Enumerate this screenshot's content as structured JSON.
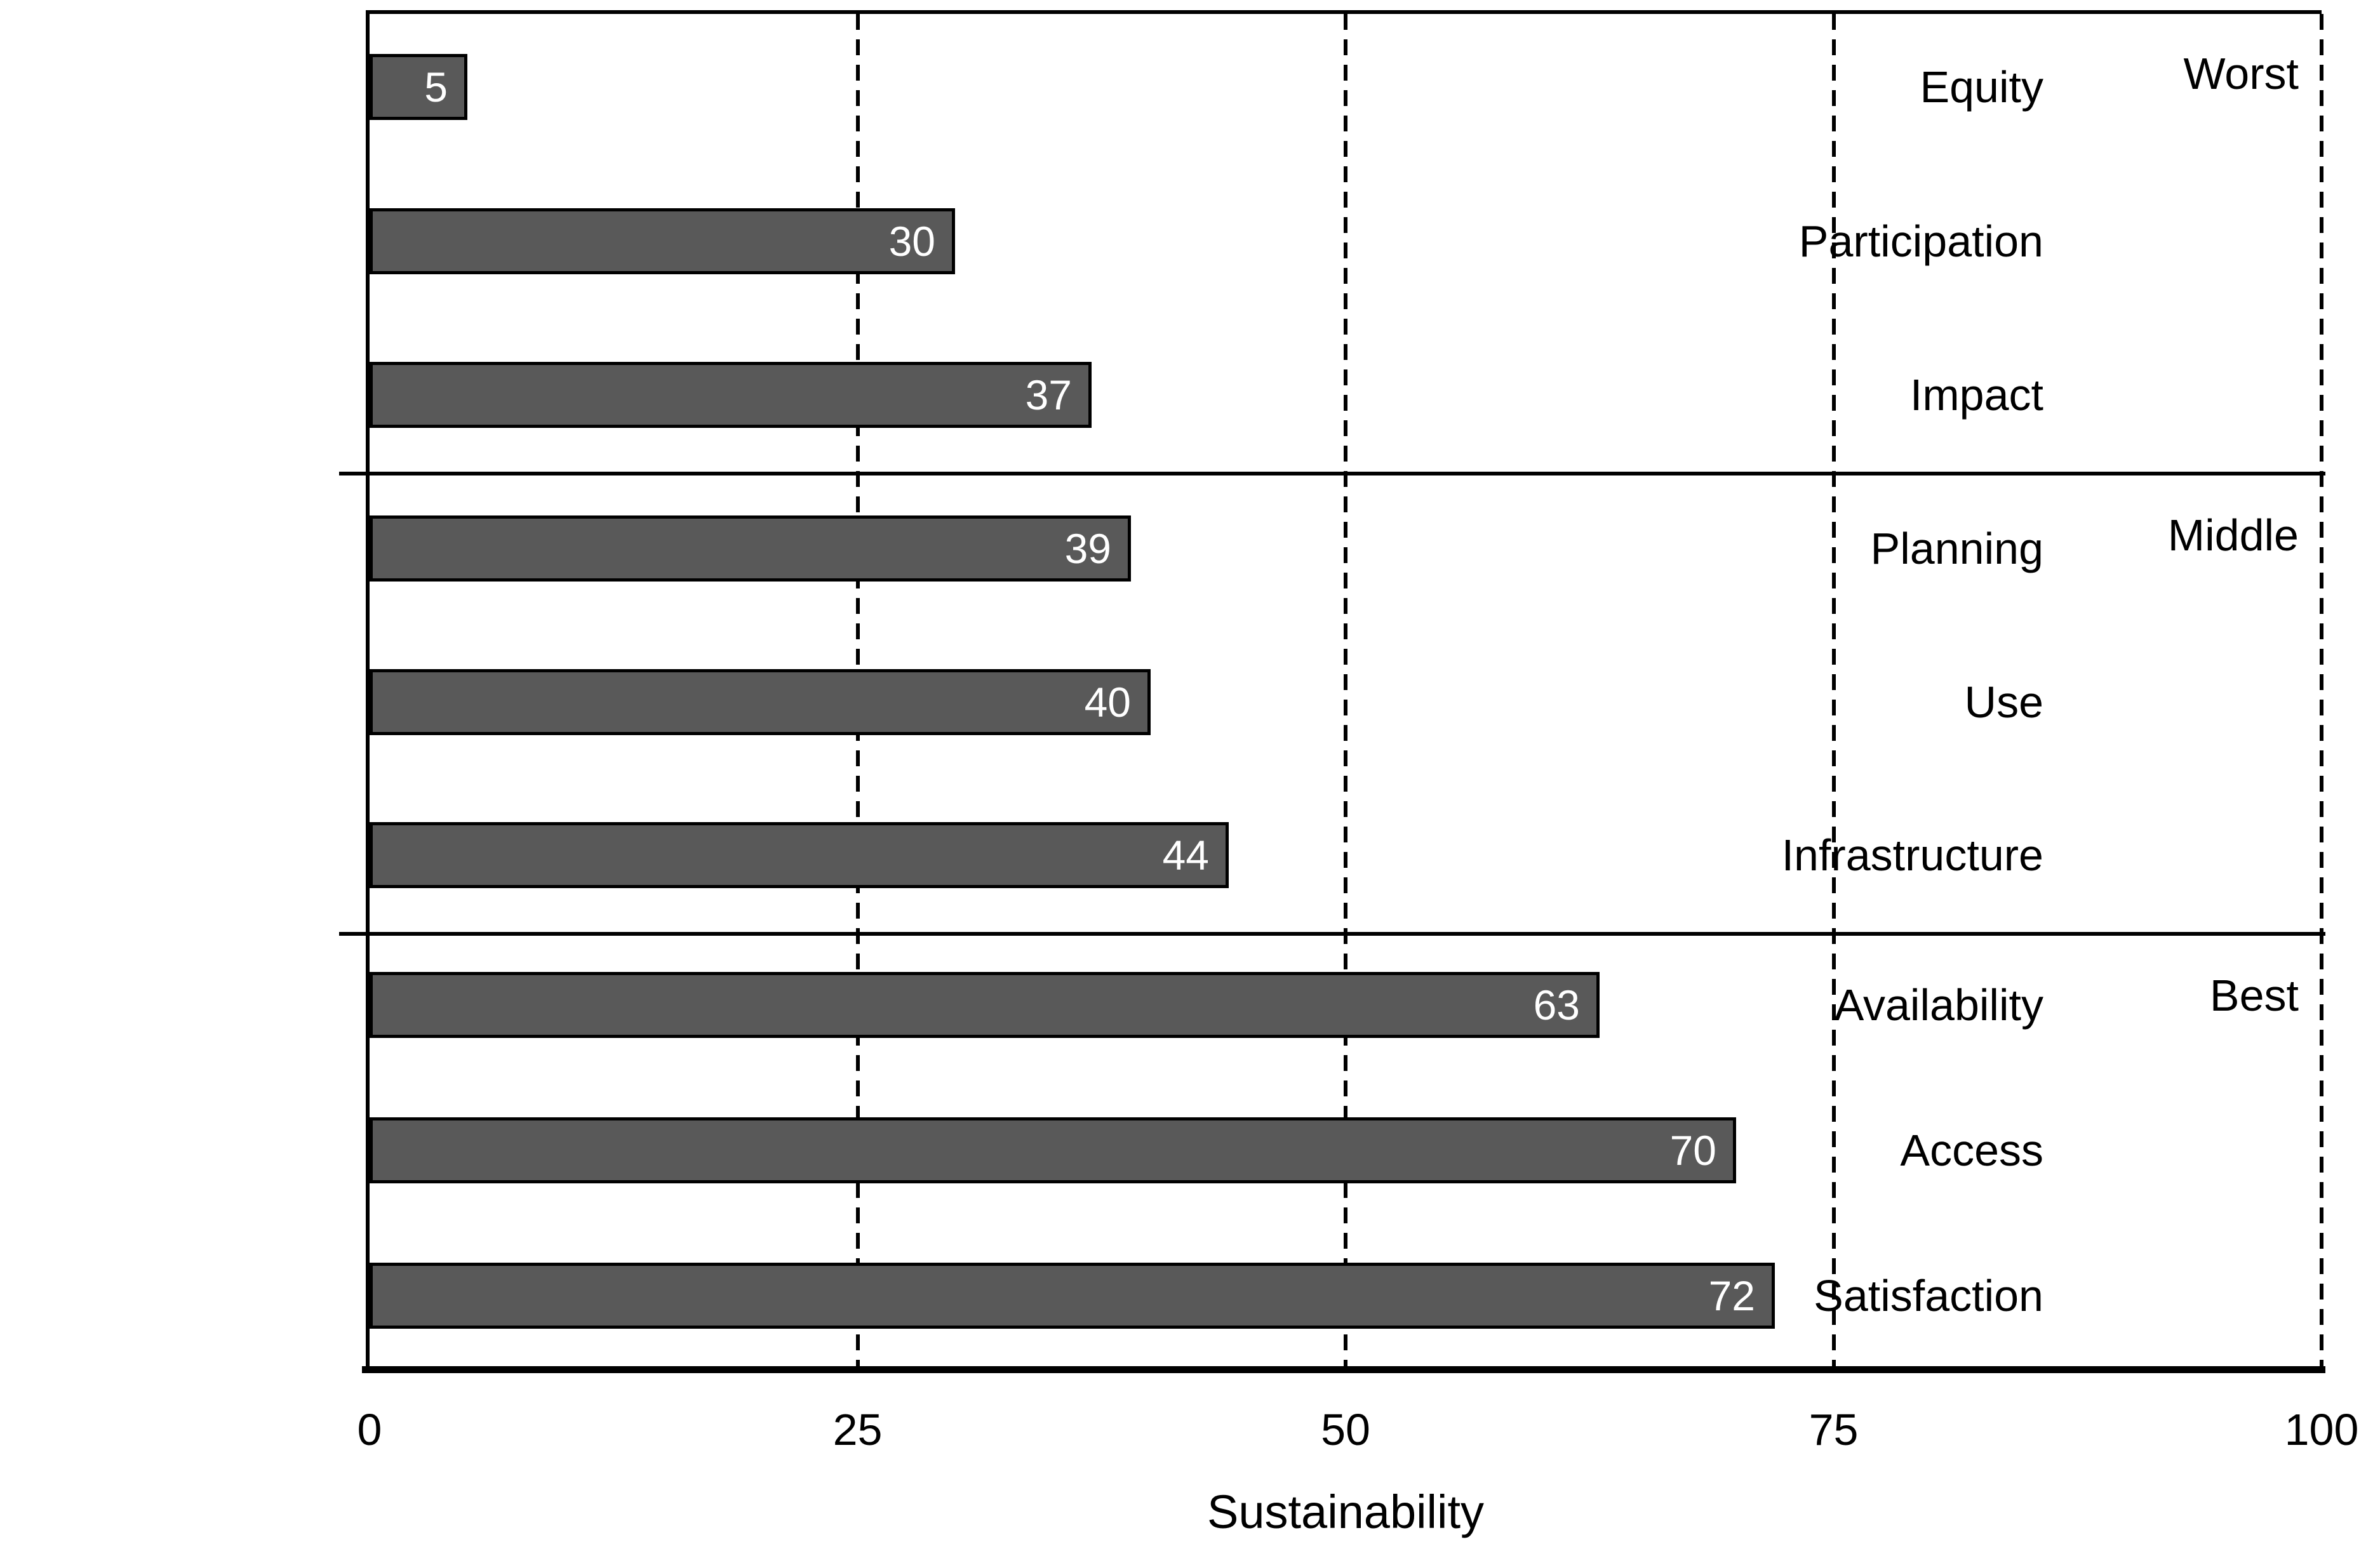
{
  "chart_data": {
    "type": "bar",
    "orientation": "horizontal",
    "title": "",
    "xlabel": "Sustainability",
    "xlim": [
      0,
      100
    ],
    "xticks": [
      0,
      25,
      50,
      75,
      100
    ],
    "xtick_labels": [
      "0",
      "25",
      "50",
      "75",
      "100"
    ],
    "grid": {
      "vertical_dashed_at": [
        25,
        50,
        75,
        100
      ],
      "horizontal": false
    },
    "legend_position": "none",
    "bar_color": "#595959",
    "bar_border_color": "#000000",
    "bar_value_text_color": "#ffffff",
    "groups": [
      {
        "label": "Worst",
        "items": [
          {
            "category": "Equity",
            "value": 5
          },
          {
            "category": "Participation",
            "value": 30
          },
          {
            "category": "Impact",
            "value": 37
          }
        ]
      },
      {
        "label": "Middle",
        "items": [
          {
            "category": "Planning",
            "value": 39
          },
          {
            "category": "Use",
            "value": 40
          },
          {
            "category": "Infrastructure",
            "value": 44
          }
        ]
      },
      {
        "label": "Best",
        "items": [
          {
            "category": "Availability",
            "value": 63
          },
          {
            "category": "Access",
            "value": 70
          },
          {
            "category": "Satisfaction",
            "value": 72
          }
        ]
      }
    ],
    "categories": [
      "Equity",
      "Participation",
      "Impact",
      "Planning",
      "Use",
      "Infrastructure",
      "Availability",
      "Access",
      "Satisfaction"
    ],
    "values": [
      5,
      30,
      37,
      39,
      40,
      44,
      63,
      70,
      72
    ]
  }
}
